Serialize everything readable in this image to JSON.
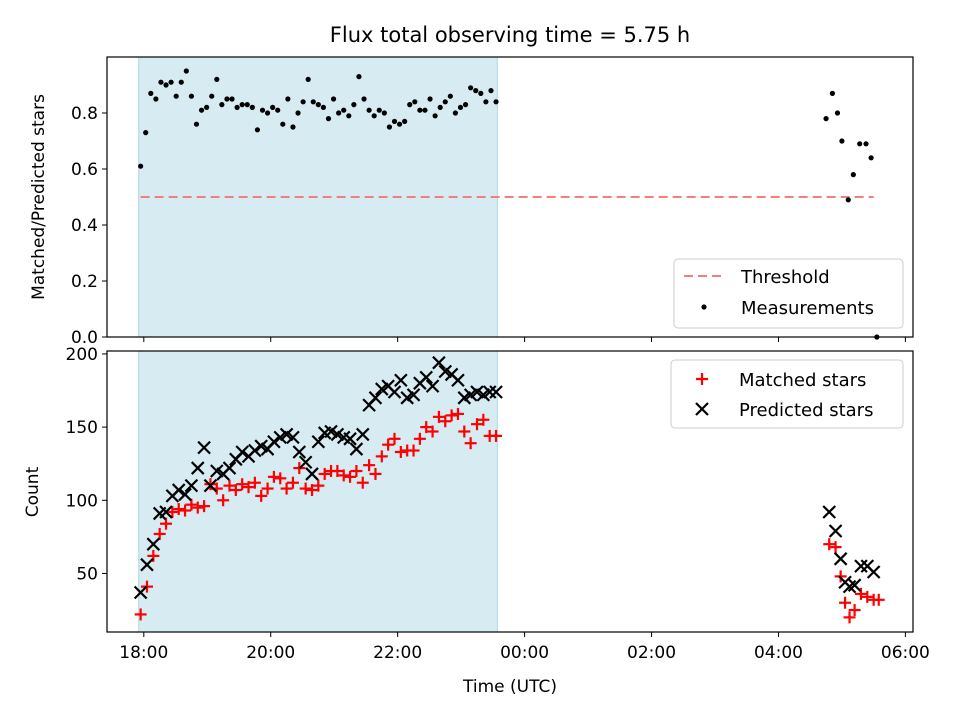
{
  "figure": {
    "title": "Flux total observing time = 5.75 h",
    "xlabel": "Time (UTC)",
    "xticks": [
      "18:00",
      "20:00",
      "22:00",
      "00:00",
      "02:00",
      "04:00",
      "06:00"
    ],
    "shaded_span_hours": [
      17.92,
      23.57
    ],
    "shaded_color": "#add8e6"
  },
  "chart_data": [
    {
      "type": "scatter",
      "ylabel": "Matched/Predicted stars",
      "xlim": [
        17.42,
        30.12
      ],
      "ylim": [
        0.0,
        1.0
      ],
      "yticks": [
        "0.0",
        "0.2",
        "0.4",
        "0.6",
        "0.8"
      ],
      "legend_placement": "lower-right",
      "threshold": {
        "name": "Threshold",
        "value": 0.5,
        "x_range": [
          17.95,
          29.5
        ],
        "color": "#f08080"
      },
      "series": [
        {
          "name": "Measurements",
          "color": "#000000",
          "x": [
            17.95,
            18.03,
            18.11,
            18.19,
            18.27,
            18.35,
            18.43,
            18.51,
            18.59,
            18.67,
            18.75,
            18.83,
            18.91,
            18.99,
            19.07,
            19.15,
            19.23,
            19.31,
            19.39,
            19.47,
            19.55,
            19.63,
            19.71,
            19.79,
            19.87,
            19.95,
            20.03,
            20.11,
            20.19,
            20.27,
            20.35,
            20.43,
            20.51,
            20.59,
            20.67,
            20.75,
            20.83,
            20.91,
            20.99,
            21.07,
            21.15,
            21.23,
            21.31,
            21.39,
            21.47,
            21.55,
            21.63,
            21.71,
            21.79,
            21.87,
            21.95,
            22.03,
            22.11,
            22.19,
            22.27,
            22.35,
            22.43,
            22.51,
            22.59,
            22.67,
            22.75,
            22.83,
            22.91,
            22.99,
            23.07,
            23.15,
            23.23,
            23.31,
            23.39,
            23.47,
            23.55,
            28.75,
            28.85,
            28.93,
            29.0,
            29.1,
            29.18,
            29.28,
            29.38,
            29.46,
            29.55
          ],
          "y": [
            0.61,
            0.73,
            0.87,
            0.85,
            0.91,
            0.9,
            0.91,
            0.86,
            0.91,
            0.95,
            0.86,
            0.76,
            0.81,
            0.82,
            0.86,
            0.92,
            0.83,
            0.85,
            0.85,
            0.82,
            0.83,
            0.83,
            0.82,
            0.74,
            0.81,
            0.8,
            0.82,
            0.81,
            0.76,
            0.85,
            0.75,
            0.8,
            0.84,
            0.92,
            0.84,
            0.83,
            0.82,
            0.78,
            0.85,
            0.8,
            0.81,
            0.79,
            0.83,
            0.93,
            0.85,
            0.81,
            0.79,
            0.81,
            0.8,
            0.75,
            0.77,
            0.76,
            0.77,
            0.83,
            0.84,
            0.81,
            0.81,
            0.85,
            0.79,
            0.82,
            0.84,
            0.86,
            0.8,
            0.82,
            0.83,
            0.89,
            0.88,
            0.87,
            0.84,
            0.88,
            0.84,
            0.78,
            0.87,
            0.8,
            0.7,
            0.49,
            0.58,
            0.69,
            0.69,
            0.64,
            0.0
          ]
        }
      ]
    },
    {
      "type": "scatter",
      "ylabel": "Count",
      "xlim": [
        17.42,
        30.12
      ],
      "ylim": [
        10,
        202
      ],
      "yticks": [
        "50",
        "100",
        "150",
        "200"
      ],
      "legend_placement": "upper-right",
      "series": [
        {
          "name": "Matched stars",
          "marker": "plus",
          "color": "#ff0000",
          "x": [
            17.95,
            18.05,
            18.15,
            18.25,
            18.35,
            18.45,
            18.55,
            18.65,
            18.75,
            18.85,
            18.95,
            19.05,
            19.15,
            19.25,
            19.35,
            19.45,
            19.55,
            19.65,
            19.75,
            19.85,
            19.95,
            20.05,
            20.15,
            20.25,
            20.35,
            20.45,
            20.55,
            20.65,
            20.75,
            20.85,
            20.95,
            21.05,
            21.15,
            21.25,
            21.35,
            21.45,
            21.55,
            21.65,
            21.75,
            21.85,
            21.95,
            22.05,
            22.15,
            22.25,
            22.35,
            22.45,
            22.55,
            22.65,
            22.75,
            22.85,
            22.95,
            23.05,
            23.15,
            23.25,
            23.35,
            23.45,
            23.55,
            28.8,
            28.9,
            28.98,
            29.05,
            29.12,
            29.2,
            29.3,
            29.4,
            29.5,
            29.58
          ],
          "y": [
            22,
            41,
            62,
            77,
            84,
            92,
            94,
            93,
            97,
            95,
            96,
            111,
            108,
            100,
            110,
            107,
            111,
            109,
            112,
            103,
            108,
            116,
            115,
            108,
            112,
            122,
            108,
            107,
            110,
            118,
            120,
            120,
            117,
            116,
            120,
            112,
            124,
            118,
            130,
            138,
            142,
            133,
            134,
            134,
            142,
            150,
            147,
            157,
            154,
            158,
            159,
            147,
            139,
            152,
            155,
            144,
            144,
            70,
            68,
            48,
            30,
            20,
            25,
            36,
            34,
            32,
            32
          ]
        },
        {
          "name": "Predicted stars",
          "marker": "x",
          "color": "#000000",
          "x": [
            17.95,
            18.05,
            18.15,
            18.25,
            18.35,
            18.45,
            18.55,
            18.65,
            18.75,
            18.85,
            18.95,
            19.05,
            19.15,
            19.25,
            19.35,
            19.45,
            19.55,
            19.65,
            19.75,
            19.85,
            19.95,
            20.05,
            20.15,
            20.25,
            20.35,
            20.45,
            20.55,
            20.65,
            20.75,
            20.85,
            20.95,
            21.05,
            21.15,
            21.25,
            21.35,
            21.45,
            21.55,
            21.65,
            21.75,
            21.85,
            21.95,
            22.05,
            22.15,
            22.25,
            22.35,
            22.45,
            22.55,
            22.65,
            22.75,
            22.85,
            22.95,
            23.05,
            23.15,
            23.25,
            23.35,
            23.45,
            23.55,
            28.8,
            28.9,
            28.98,
            29.05,
            29.12,
            29.2,
            29.3,
            29.4,
            29.5
          ],
          "y": [
            37,
            56,
            70,
            91,
            92,
            103,
            107,
            104,
            110,
            122,
            136,
            110,
            120,
            118,
            122,
            128,
            133,
            130,
            134,
            137,
            135,
            140,
            143,
            145,
            143,
            133,
            126,
            118,
            140,
            146,
            147,
            145,
            143,
            142,
            135,
            145,
            165,
            170,
            176,
            178,
            174,
            182,
            170,
            172,
            180,
            184,
            178,
            194,
            188,
            186,
            182,
            170,
            172,
            174,
            172,
            174,
            174,
            92,
            79,
            60,
            44,
            41,
            42,
            55,
            55,
            51
          ]
        }
      ]
    }
  ]
}
